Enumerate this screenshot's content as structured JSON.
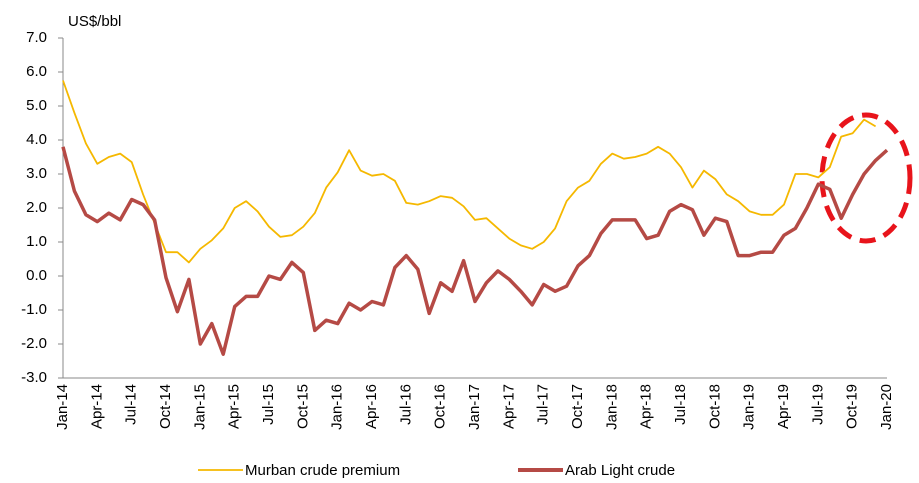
{
  "chart_data": {
    "type": "line",
    "y_label": "US$/bbl",
    "categories": [
      "Jan-14",
      null,
      null,
      "Apr-14",
      null,
      null,
      "Jul-14",
      null,
      null,
      "Oct-14",
      null,
      null,
      "Jan-15",
      null,
      null,
      "Apr-15",
      null,
      null,
      "Jul-15",
      null,
      null,
      "Oct-15",
      null,
      null,
      "Jan-16",
      null,
      null,
      "Apr-16",
      null,
      null,
      "Jul-16",
      null,
      null,
      "Oct-16",
      null,
      null,
      "Jan-17",
      null,
      null,
      "Apr-17",
      null,
      null,
      "Jul-17",
      null,
      null,
      "Oct-17",
      null,
      null,
      "Jan-18",
      null,
      null,
      "Apr-18",
      null,
      null,
      "Jul-18",
      null,
      null,
      "Oct-18",
      null,
      null,
      "Jan-19",
      null,
      null,
      "Apr-19",
      null,
      null,
      "Jul-19",
      null,
      null,
      "Oct-19",
      null,
      null,
      "Jan-20"
    ],
    "series": [
      {
        "name": "Murban crude premium",
        "color": "#f5b800",
        "values": [
          5.75,
          4.8,
          3.9,
          3.3,
          3.5,
          3.6,
          3.35,
          2.4,
          1.55,
          0.7,
          0.7,
          0.4,
          0.8,
          1.05,
          1.4,
          2.0,
          2.2,
          1.9,
          1.45,
          1.15,
          1.2,
          1.45,
          1.85,
          2.6,
          3.05,
          3.7,
          3.1,
          2.95,
          3.0,
          2.8,
          2.15,
          2.1,
          2.2,
          2.35,
          2.3,
          2.05,
          1.65,
          1.7,
          1.4,
          1.1,
          0.9,
          0.8,
          1.0,
          1.4,
          2.2,
          2.6,
          2.8,
          3.3,
          3.6,
          3.45,
          3.5,
          3.6,
          3.8,
          3.6,
          3.2,
          2.6,
          3.1,
          2.85,
          2.4,
          2.2,
          1.9,
          1.8,
          1.8,
          2.1,
          3.0,
          3.0,
          2.9,
          3.2,
          4.1,
          4.2,
          4.6,
          4.4,
          null
        ]
      },
      {
        "name": "Arab Light crude",
        "color": "#b54a45",
        "values": [
          3.8,
          2.5,
          1.8,
          1.6,
          1.85,
          1.65,
          2.25,
          2.1,
          1.65,
          -0.05,
          -1.05,
          -0.1,
          -2.0,
          -1.4,
          -2.3,
          -0.9,
          -0.6,
          -0.6,
          0.0,
          -0.1,
          0.4,
          0.1,
          -1.6,
          -1.3,
          -1.4,
          -0.8,
          -1.0,
          -0.75,
          -0.85,
          0.25,
          0.6,
          0.2,
          -1.1,
          -0.2,
          -0.45,
          0.45,
          -0.75,
          -0.2,
          0.15,
          -0.1,
          -0.45,
          -0.85,
          -0.25,
          -0.45,
          -0.3,
          0.3,
          0.6,
          1.25,
          1.65,
          1.65,
          1.65,
          1.1,
          1.2,
          1.9,
          2.1,
          1.95,
          1.2,
          1.7,
          1.6,
          0.6,
          0.6,
          0.7,
          0.7,
          1.2,
          1.4,
          2.0,
          2.7,
          2.55,
          1.7,
          2.4,
          3.0,
          3.4,
          3.7
        ]
      }
    ],
    "ylim": [
      -3,
      7
    ],
    "yticks": [
      {
        "value": -3,
        "label": "-3.0"
      },
      {
        "value": -2,
        "label": "-2.0"
      },
      {
        "value": -1,
        "label": "-1.0"
      },
      {
        "value": 0,
        "label": "0.0"
      },
      {
        "value": 1,
        "label": "1.0"
      },
      {
        "value": 2,
        "label": "2.0"
      },
      {
        "value": 3,
        "label": "3.0"
      },
      {
        "value": 4,
        "label": "4.0"
      },
      {
        "value": 5,
        "label": "5.0"
      },
      {
        "value": 6,
        "label": "6.0"
      },
      {
        "value": 7,
        "label": "7.0"
      }
    ],
    "legend": "bottom"
  }
}
